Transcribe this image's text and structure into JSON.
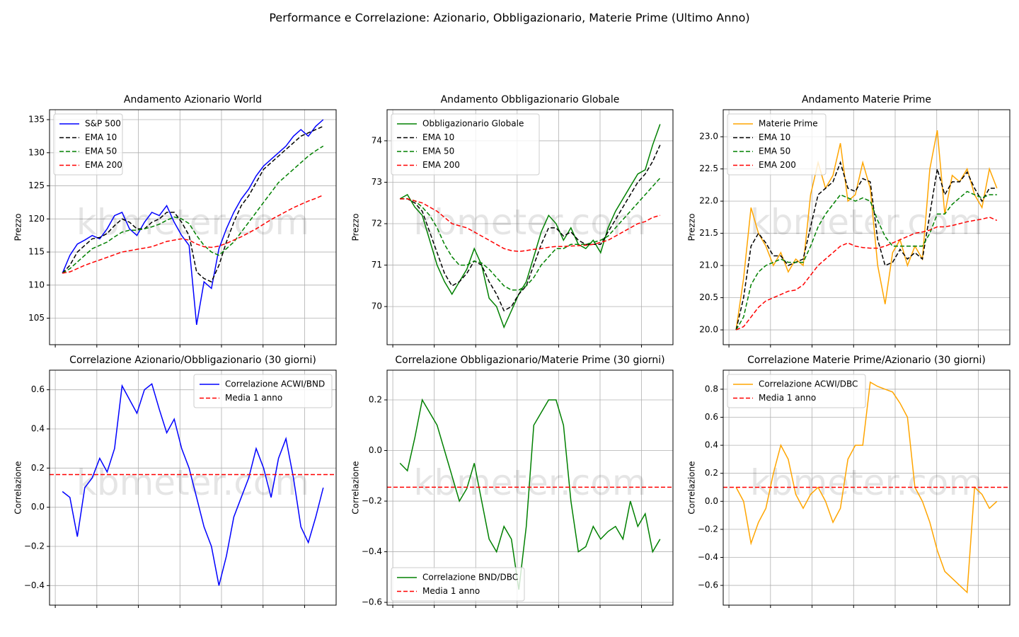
{
  "title": "Performance e Correlazione: Azionario, Obbligazionario, Materie Prime (Ultimo Anno)",
  "chart_data": [
    {
      "type": "line",
      "title": "Andamento Azionario World",
      "ylabel": "Prezzo",
      "watermark": "kbmeter.com",
      "ylim": [
        101,
        136.5
      ],
      "yticks": [
        105,
        110,
        115,
        120,
        125,
        130,
        135
      ],
      "grid": true,
      "legend": "upper left",
      "series": [
        {
          "name": "S&P 500",
          "color": "#0000ff",
          "style": "solid",
          "values": [
            111.8,
            114.5,
            116.2,
            116.8,
            117.5,
            117,
            118.5,
            120.5,
            121,
            118.5,
            117.5,
            119.5,
            121,
            120.5,
            122,
            119.5,
            117.5,
            116,
            104,
            110.5,
            109.5,
            115.5,
            118.5,
            121,
            123,
            124.5,
            126.5,
            128,
            129,
            130,
            131,
            132.5,
            133.5,
            132.5,
            134,
            135
          ]
        },
        {
          "name": "EMA 10",
          "color": "#000000",
          "style": "dashed",
          "values": [
            111.8,
            113,
            115,
            116,
            117,
            117.2,
            117.8,
            119,
            120,
            119.5,
            118.5,
            118.5,
            119.5,
            120,
            121,
            121,
            119.5,
            117.5,
            112,
            111,
            110.5,
            113,
            116.5,
            119.5,
            122,
            123.5,
            125.5,
            127.5,
            128.5,
            129.5,
            130.5,
            131.5,
            132.5,
            133,
            133.5,
            134
          ]
        },
        {
          "name": "EMA 50",
          "color": "#008000",
          "style": "dashed",
          "values": [
            111.8,
            112.5,
            113.5,
            114.5,
            115.5,
            116,
            116.5,
            117.3,
            118,
            118.3,
            118.3,
            118.5,
            118.8,
            119.2,
            119.8,
            120.3,
            120,
            119.3,
            117.5,
            116,
            115,
            114.5,
            115.5,
            116.5,
            118,
            119.5,
            121,
            122.5,
            124,
            125.5,
            126.5,
            127.5,
            128.5,
            129.5,
            130.3,
            131
          ]
        },
        {
          "name": "EMA 200",
          "color": "#ff0000",
          "style": "dashed",
          "values": [
            111.8,
            112,
            112.5,
            113,
            113.4,
            113.8,
            114.2,
            114.6,
            115,
            115.2,
            115.4,
            115.6,
            115.8,
            116.2,
            116.6,
            116.8,
            117,
            116.8,
            116.2,
            115.8,
            115.7,
            115.9,
            116.3,
            116.8,
            117.3,
            117.9,
            118.5,
            119.2,
            119.9,
            120.5,
            121.1,
            121.7,
            122.2,
            122.7,
            123.1,
            123.6
          ]
        }
      ]
    },
    {
      "type": "line",
      "title": "Andamento Obbligazionario Globale",
      "ylabel": "Prezzo",
      "watermark": "kbmeter.com",
      "ylim": [
        69.08,
        74.75
      ],
      "yticks": [
        70,
        71,
        72,
        73,
        74
      ],
      "grid": true,
      "legend": "upper left",
      "series": [
        {
          "name": "Obbligazionario Globale",
          "color": "#008000",
          "style": "solid",
          "values": [
            72.6,
            72.7,
            72.4,
            72.2,
            71.6,
            71.0,
            70.6,
            70.3,
            70.6,
            70.9,
            71.4,
            71.0,
            70.2,
            70.0,
            69.5,
            69.9,
            70.3,
            70.6,
            71.2,
            71.8,
            72.2,
            72.0,
            71.6,
            71.9,
            71.5,
            71.4,
            71.6,
            71.3,
            71.9,
            72.3,
            72.6,
            72.9,
            73.2,
            73.3,
            73.9,
            74.4
          ]
        },
        {
          "name": "EMA 10",
          "color": "#000000",
          "style": "dashed",
          "values": [
            72.6,
            72.6,
            72.5,
            72.3,
            71.8,
            71.3,
            70.8,
            70.5,
            70.6,
            70.8,
            71.1,
            71.0,
            70.6,
            70.3,
            69.9,
            70.0,
            70.3,
            70.5,
            71.0,
            71.5,
            71.9,
            71.9,
            71.7,
            71.8,
            71.6,
            71.5,
            71.5,
            71.5,
            71.8,
            72.1,
            72.4,
            72.7,
            73.0,
            73.2,
            73.5,
            73.9
          ]
        },
        {
          "name": "EMA 50",
          "color": "#008000",
          "style": "dashed",
          "values": [
            72.6,
            72.6,
            72.55,
            72.4,
            72.2,
            71.9,
            71.5,
            71.2,
            71.0,
            71.0,
            71.1,
            71.05,
            70.9,
            70.7,
            70.5,
            70.4,
            70.4,
            70.5,
            70.7,
            71.0,
            71.2,
            71.4,
            71.4,
            71.5,
            71.5,
            71.5,
            71.55,
            71.6,
            71.7,
            71.9,
            72.1,
            72.3,
            72.5,
            72.7,
            72.9,
            73.1
          ]
        },
        {
          "name": "EMA 200",
          "color": "#ff0000",
          "style": "dashed",
          "values": [
            72.6,
            72.6,
            72.55,
            72.5,
            72.4,
            72.3,
            72.15,
            72.0,
            71.95,
            71.9,
            71.8,
            71.7,
            71.6,
            71.5,
            71.4,
            71.35,
            71.33,
            71.35,
            71.38,
            71.4,
            71.43,
            71.45,
            71.45,
            71.46,
            71.47,
            71.48,
            71.5,
            71.55,
            71.6,
            71.7,
            71.8,
            71.9,
            72.0,
            72.05,
            72.15,
            72.2
          ]
        }
      ]
    },
    {
      "type": "line",
      "title": "Andamento Materie Prime",
      "ylabel": "Prezzo",
      "watermark": "kbmeter.com",
      "ylim": [
        19.77,
        23.42
      ],
      "yticks": [
        {
          "value": 20,
          "label": "20.0"
        },
        20.5,
        {
          "value": 21,
          "label": "21.0"
        },
        21.5,
        {
          "value": 22,
          "label": "22.0"
        },
        22.5,
        {
          "value": 23,
          "label": "23.0"
        }
      ],
      "grid": true,
      "legend": "upper left",
      "series": [
        {
          "name": "Materie Prime",
          "color": "#ffa500",
          "style": "solid",
          "values": [
            20.0,
            20.8,
            21.9,
            21.5,
            21.3,
            21.0,
            21.2,
            20.9,
            21.1,
            21.0,
            22.1,
            22.6,
            22.2,
            22.4,
            22.9,
            22.0,
            22.1,
            22.6,
            22.2,
            21.0,
            20.4,
            21.2,
            21.4,
            21.0,
            21.3,
            21.1,
            22.5,
            23.1,
            21.8,
            22.4,
            22.3,
            22.5,
            22.1,
            21.9,
            22.5,
            22.2
          ]
        },
        {
          "name": "EMA 10",
          "color": "#000000",
          "style": "dashed",
          "values": [
            20.0,
            20.5,
            21.3,
            21.5,
            21.35,
            21.15,
            21.15,
            21.0,
            21.05,
            21.1,
            21.6,
            22.1,
            22.2,
            22.3,
            22.6,
            22.2,
            22.15,
            22.35,
            22.3,
            21.4,
            21.0,
            21.05,
            21.25,
            21.1,
            21.2,
            21.1,
            21.8,
            22.5,
            22.1,
            22.3,
            22.3,
            22.45,
            22.2,
            22.0,
            22.2,
            22.2
          ]
        },
        {
          "name": "EMA 50",
          "color": "#008000",
          "style": "dashed",
          "values": [
            20.0,
            20.2,
            20.7,
            20.9,
            21.0,
            21.05,
            21.1,
            21.05,
            21.05,
            21.05,
            21.3,
            21.6,
            21.8,
            21.95,
            22.1,
            22.05,
            22.0,
            22.05,
            22.0,
            21.7,
            21.45,
            21.3,
            21.3,
            21.3,
            21.3,
            21.3,
            21.5,
            21.8,
            21.8,
            21.95,
            22.05,
            22.15,
            22.1,
            22.05,
            22.1,
            22.1
          ]
        },
        {
          "name": "EMA 200",
          "color": "#ff0000",
          "style": "dashed",
          "values": [
            20.0,
            20.05,
            20.2,
            20.35,
            20.45,
            20.5,
            20.55,
            20.6,
            20.62,
            20.7,
            20.85,
            21.0,
            21.1,
            21.2,
            21.3,
            21.35,
            21.3,
            21.28,
            21.27,
            21.27,
            21.3,
            21.35,
            21.4,
            21.45,
            21.5,
            21.52,
            21.55,
            21.6,
            21.6,
            21.62,
            21.65,
            21.68,
            21.7,
            21.72,
            21.75,
            21.7
          ]
        }
      ]
    },
    {
      "type": "line",
      "title": "Correlazione Azionario/Obbligazionario (30 giorni)",
      "ylabel": "Correlazione",
      "watermark": "kbmeter.com",
      "ylim": [
        -0.5,
        0.7
      ],
      "yticks": [
        {
          "value": -0.4,
          "label": "−0.4"
        },
        {
          "value": -0.2,
          "label": "−0.2"
        },
        {
          "value": 0,
          "label": "0.0"
        },
        0.2,
        0.4,
        0.6
      ],
      "grid": true,
      "legend": "upper right",
      "series": [
        {
          "name": "Correlazione ACWI/BND",
          "color": "#0000ff",
          "style": "solid",
          "values": [
            0.08,
            0.05,
            -0.15,
            0.1,
            0.15,
            0.25,
            0.18,
            0.3,
            0.62,
            0.55,
            0.48,
            0.6,
            0.63,
            0.5,
            0.38,
            0.45,
            0.3,
            0.2,
            0.05,
            -0.1,
            -0.2,
            -0.4,
            -0.25,
            -0.05,
            0.05,
            0.15,
            0.3,
            0.2,
            0.05,
            0.25,
            0.35,
            0.15,
            -0.1,
            -0.18,
            -0.05,
            0.1
          ]
        }
      ],
      "mean": {
        "name": "Media 1 anno",
        "color": "#ff0000",
        "style": "dashed",
        "value": 0.167
      }
    },
    {
      "type": "line",
      "title": "Correlazione Obbligazionario/Materie Prime (30 giorni)",
      "ylabel": "Correlazione",
      "watermark": "kbmeter.com",
      "ylim": [
        -0.611,
        0.3175
      ],
      "yticks": [
        {
          "value": -0.6,
          "label": "−0.6"
        },
        {
          "value": -0.4,
          "label": "−0.4"
        },
        {
          "value": -0.2,
          "label": "−0.2"
        },
        {
          "value": 0,
          "label": "0.0"
        },
        0.2
      ],
      "grid": true,
      "legend": "lower left",
      "series": [
        {
          "name": "Correlazione BND/DBC",
          "color": "#008000",
          "style": "solid",
          "values": [
            -0.05,
            -0.08,
            0.05,
            0.2,
            0.15,
            0.1,
            0.0,
            -0.1,
            -0.2,
            -0.15,
            -0.05,
            -0.2,
            -0.35,
            -0.4,
            -0.3,
            -0.35,
            -0.55,
            -0.3,
            0.1,
            0.15,
            0.2,
            0.2,
            0.1,
            -0.2,
            -0.4,
            -0.38,
            -0.3,
            -0.35,
            -0.32,
            -0.3,
            -0.35,
            -0.2,
            -0.3,
            -0.25,
            -0.4,
            -0.35
          ]
        }
      ],
      "mean": {
        "name": "Media 1 anno",
        "color": "#ff0000",
        "style": "dashed",
        "value": -0.145
      }
    },
    {
      "type": "line",
      "title": "Correlazione Materie Prime/Azionario (30 giorni)",
      "ylabel": "Correlazione",
      "watermark": "kbmeter.com",
      "ylim": [
        -0.741,
        0.936
      ],
      "yticks": [
        {
          "value": -0.6,
          "label": "−0.6"
        },
        {
          "value": -0.4,
          "label": "−0.4"
        },
        {
          "value": -0.2,
          "label": "−0.2"
        },
        {
          "value": 0,
          "label": "0.0"
        },
        0.2,
        0.4,
        0.6,
        0.8
      ],
      "grid": true,
      "legend": "upper left",
      "series": [
        {
          "name": "Correlazione ACWI/DBC",
          "color": "#ffa500",
          "style": "solid",
          "values": [
            0.1,
            0.0,
            -0.3,
            -0.15,
            -0.05,
            0.2,
            0.4,
            0.3,
            0.05,
            -0.05,
            0.05,
            0.1,
            0.0,
            -0.15,
            -0.05,
            0.3,
            0.4,
            0.4,
            0.85,
            0.82,
            0.8,
            0.78,
            0.7,
            0.6,
            0.1,
            0.0,
            -0.15,
            -0.35,
            -0.5,
            -0.55,
            -0.6,
            -0.65,
            0.1,
            0.05,
            -0.05,
            0.0
          ]
        }
      ],
      "mean": {
        "name": "Media 1 anno",
        "color": "#ff0000",
        "style": "dashed",
        "value": 0.1
      }
    }
  ]
}
